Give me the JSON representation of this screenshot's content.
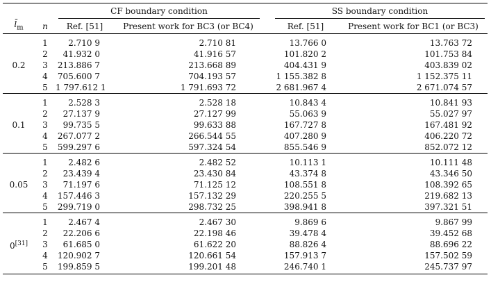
{
  "headers": {
    "lm_label": "l̄",
    "lm_sub": "m",
    "n_label": "n",
    "cf_group": "CF boundary condition",
    "ss_group": "SS boundary condition",
    "cf_ref": "Ref. [51]",
    "cf_present": "Present work for BC3 (or BC4)",
    "ss_ref": "Ref. [51]",
    "ss_present": "Present work for BC1 (or BC3)"
  },
  "groups": [
    {
      "lm": "0.2",
      "lm_sup": "",
      "rows": [
        {
          "n": "1",
          "cf_ref": "2.710 9",
          "cf_present": "2.710 81",
          "ss_ref": "13.766 0",
          "ss_present": "13.763 72"
        },
        {
          "n": "2",
          "cf_ref": "41.932 0",
          "cf_present": "41.916 57",
          "ss_ref": "101.820 2",
          "ss_present": "101.753 84"
        },
        {
          "n": "3",
          "cf_ref": "213.886 7",
          "cf_present": "213.668 89",
          "ss_ref": "404.431 9",
          "ss_present": "403.839 02"
        },
        {
          "n": "4",
          "cf_ref": "705.600 7",
          "cf_present": "704.193 57",
          "ss_ref": "1 155.382 8",
          "ss_present": "1 152.375 11"
        },
        {
          "n": "5",
          "cf_ref": "1 797.612 1",
          "cf_present": "1 791.693 72",
          "ss_ref": "2 681.967 4",
          "ss_present": "2 671.074 57"
        }
      ]
    },
    {
      "lm": "0.1",
      "lm_sup": "",
      "rows": [
        {
          "n": "1",
          "cf_ref": "2.528 3",
          "cf_present": "2.528 18",
          "ss_ref": "10.843 4",
          "ss_present": "10.841 93"
        },
        {
          "n": "2",
          "cf_ref": "27.137 9",
          "cf_present": "27.127 99",
          "ss_ref": "55.063 9",
          "ss_present": "55.027 97"
        },
        {
          "n": "3",
          "cf_ref": "99.735 5",
          "cf_present": "99.633 88",
          "ss_ref": "167.727 8",
          "ss_present": "167.481 92"
        },
        {
          "n": "4",
          "cf_ref": "267.077 2",
          "cf_present": "266.544 55",
          "ss_ref": "407.280 9",
          "ss_present": "406.220 72"
        },
        {
          "n": "5",
          "cf_ref": "599.297 6",
          "cf_present": "597.324 54",
          "ss_ref": "855.546 9",
          "ss_present": "852.072 12"
        }
      ]
    },
    {
      "lm": "0.05",
      "lm_sup": "",
      "rows": [
        {
          "n": "1",
          "cf_ref": "2.482 6",
          "cf_present": "2.482 52",
          "ss_ref": "10.113 1",
          "ss_present": "10.111 48"
        },
        {
          "n": "2",
          "cf_ref": "23.439 4",
          "cf_present": "23.430 84",
          "ss_ref": "43.374 8",
          "ss_present": "43.346 50"
        },
        {
          "n": "3",
          "cf_ref": "71.197 6",
          "cf_present": "71.125 12",
          "ss_ref": "108.551 8",
          "ss_present": "108.392 65"
        },
        {
          "n": "4",
          "cf_ref": "157.446 3",
          "cf_present": "157.132 29",
          "ss_ref": "220.255 5",
          "ss_present": "219.682 13"
        },
        {
          "n": "5",
          "cf_ref": "299.719 0",
          "cf_present": "298.732 25",
          "ss_ref": "398.941 8",
          "ss_present": "397.321 51"
        }
      ]
    },
    {
      "lm": "0",
      "lm_sup": "[31]",
      "rows": [
        {
          "n": "1",
          "cf_ref": "2.467 4",
          "cf_present": "2.467 30",
          "ss_ref": "9.869 6",
          "ss_present": "9.867 99"
        },
        {
          "n": "2",
          "cf_ref": "22.206 6",
          "cf_present": "22.198 46",
          "ss_ref": "39.478 4",
          "ss_present": "39.452 68"
        },
        {
          "n": "3",
          "cf_ref": "61.685 0",
          "cf_present": "61.622 20",
          "ss_ref": "88.826 4",
          "ss_present": "88.696 22"
        },
        {
          "n": "4",
          "cf_ref": "120.902 7",
          "cf_present": "120.661 54",
          "ss_ref": "157.913 7",
          "ss_present": "157.502 59"
        },
        {
          "n": "5",
          "cf_ref": "199.859 5",
          "cf_present": "199.201 48",
          "ss_ref": "246.740 1",
          "ss_present": "245.737 97"
        }
      ]
    }
  ]
}
